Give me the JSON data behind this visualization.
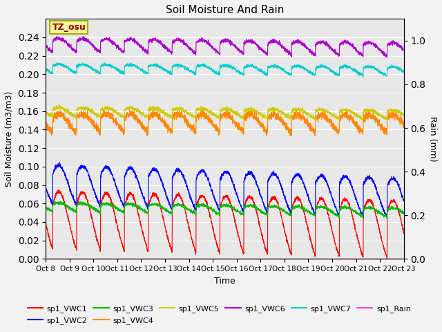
{
  "title": "Soil Moisture And Rain",
  "xlabel": "Time",
  "ylabel_left": "Soil Moisture (m3/m3)",
  "ylabel_right": "Rain (mm)",
  "annotation": "TZ_osu",
  "ylim_left": [
    0.0,
    0.26
  ],
  "ylim_right": [
    0.0,
    1.1
  ],
  "x_ticks_labels": [
    "Oct 8",
    "Oct 9",
    "Oct 10",
    "Oct 11",
    "Oct 12",
    "Oct 13",
    "Oct 14",
    "Oct 15",
    "Oct 16",
    "Oct 17",
    "Oct 18",
    "Oct 19",
    "Oct 20",
    "Oct 21",
    "Oct 22",
    "Oct 23"
  ],
  "series_params": {
    "sp1_VWC1": {
      "color": "#ff0000",
      "base": 0.06,
      "amp": 0.013,
      "trend": -0.01,
      "noise": 0.001,
      "phase": 0.3
    },
    "sp1_VWC2": {
      "color": "#0000ff",
      "base": 0.093,
      "amp": 0.009,
      "trend": -0.015,
      "noise": 0.001,
      "phase": 0.3
    },
    "sp1_VWC3": {
      "color": "#00bb00",
      "base": 0.059,
      "amp": 0.002,
      "trend": -0.006,
      "noise": 0.0008,
      "phase": 0.3
    },
    "sp1_VWC4": {
      "color": "#ff8800",
      "base": 0.153,
      "amp": 0.004,
      "trend": -0.001,
      "noise": 0.002,
      "phase": 0.3
    },
    "sp1_VWC5": {
      "color": "#cccc00",
      "base": 0.162,
      "amp": 0.002,
      "trend": -0.003,
      "noise": 0.001,
      "phase": 0.3
    },
    "sp1_VWC6": {
      "color": "#aa00cc",
      "base": 0.236,
      "amp": 0.003,
      "trend": -0.005,
      "noise": 0.001,
      "phase": 0.3
    },
    "sp1_VWC7": {
      "color": "#00cccc",
      "base": 0.209,
      "amp": 0.002,
      "trend": -0.003,
      "noise": 0.0008,
      "phase": 0.3
    }
  },
  "rain_color": "#ff44cc",
  "bg_color": "#e8e8e8",
  "fig_bg": "#f2f2f2",
  "legend_colors": {
    "sp1_VWC1": "#ff0000",
    "sp1_VWC2": "#0000ff",
    "sp1_VWC3": "#00bb00",
    "sp1_VWC4": "#ff8800",
    "sp1_VWC5": "#cccc00",
    "sp1_VWC6": "#aa00cc",
    "sp1_VWC7": "#00cccc",
    "sp1_Rain": "#ff44cc"
  }
}
